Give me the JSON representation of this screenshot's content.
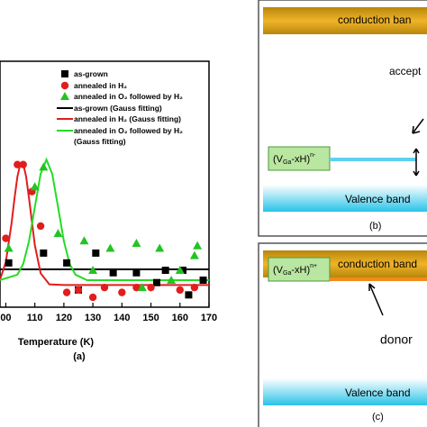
{
  "chart_data": {
    "type": "scatter",
    "x_label": "Temperature (K)",
    "caption": "(a)",
    "xlim": [
      98,
      170
    ],
    "xticks": [
      {
        "value": 100,
        "label": "00"
      },
      110,
      120,
      130,
      140,
      150,
      160,
      170
    ],
    "ylim": [
      0,
      10
    ],
    "series": [
      {
        "name": "as-grown",
        "kind": "marker",
        "marker": "square",
        "color": "#000000",
        "x": [
          101,
          113,
          121,
          125,
          131,
          137,
          145,
          152,
          155,
          161,
          163,
          168
        ],
        "values": [
          1.8,
          2.2,
          1.8,
          0.7,
          2.2,
          1.4,
          1.4,
          1.0,
          1.5,
          1.5,
          0.5,
          1.1
        ]
      },
      {
        "name": "annealed in H₂",
        "kind": "marker",
        "marker": "circle",
        "color": "#e11d1d",
        "x": [
          100,
          104,
          106,
          109,
          112,
          121,
          125,
          130,
          134,
          140,
          145,
          150,
          160,
          165
        ],
        "values": [
          2.8,
          5.8,
          5.8,
          4.7,
          3.3,
          0.6,
          0.7,
          0.4,
          0.8,
          0.6,
          0.8,
          0.8,
          0.7,
          0.8
        ]
      },
      {
        "name": "annealed in O₂ followed by H₂",
        "kind": "marker",
        "marker": "triangle",
        "color": "#22c422",
        "x": [
          101,
          110,
          113,
          118,
          127,
          130,
          136,
          145,
          147,
          153,
          157,
          160,
          165,
          166
        ],
        "values": [
          2.4,
          4.9,
          5.7,
          3.0,
          2.7,
          1.5,
          2.4,
          2.6,
          0.8,
          2.4,
          1.1,
          1.5,
          2.1,
          2.5
        ]
      },
      {
        "name": "as-grown (Gauss fitting)",
        "kind": "line",
        "color": "#000000",
        "x": [
          98,
          170
        ],
        "values": [
          1.54,
          1.54
        ]
      },
      {
        "name": "annealed in H₂ (Gauss fitting)",
        "kind": "line",
        "color": "#e11d1d",
        "x": [
          98,
          100,
          102,
          103,
          104,
          105,
          106,
          107,
          108,
          110,
          112,
          115,
          120,
          170
        ],
        "values": [
          1.12,
          1.83,
          3.43,
          4.43,
          5.31,
          5.83,
          5.83,
          5.31,
          4.43,
          2.52,
          1.38,
          0.93,
          0.9,
          0.9
        ]
      },
      {
        "name": "annealed in O₂ followed by H₂ (Gauss fitting)",
        "kind": "line",
        "color": "#22dd22",
        "x": [
          98,
          104,
          106,
          108,
          110,
          112,
          114,
          116,
          118,
          120,
          122,
          124,
          128,
          170
        ],
        "values": [
          1.1,
          1.32,
          1.76,
          2.69,
          4.07,
          5.42,
          6.0,
          5.42,
          4.07,
          2.69,
          1.76,
          1.32,
          1.1,
          1.1
        ]
      }
    ]
  },
  "diagrams": {
    "b": {
      "conduction": "conduction ban",
      "level_label": "accept",
      "defect": {
        "base": "(V",
        "sub": "Ga",
        "mid": "-xH)",
        "sup": "n-"
      },
      "valence": "Valence band",
      "caption": "(b)"
    },
    "c": {
      "conduction": "conduction band",
      "level_label": "donor",
      "defect": {
        "base": "(V",
        "sub": "Ga",
        "mid": "-xH)",
        "sup": "n+"
      },
      "valence": "Valence band",
      "caption": "(c)"
    }
  }
}
